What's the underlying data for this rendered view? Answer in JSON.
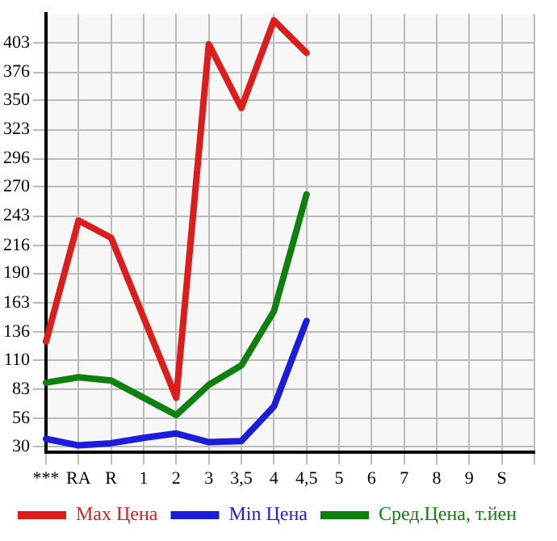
{
  "chart_data": {
    "type": "line",
    "categories": [
      "***",
      "RA",
      "R",
      "1",
      "2",
      "3",
      "3,5",
      "4",
      "4,5",
      "5",
      "6",
      "7",
      "8",
      "9",
      "S",
      null
    ],
    "series": [
      {
        "name": "Max Цена",
        "color": "#dd1c1c",
        "values": [
          127,
          239,
          223,
          149,
          75,
          402,
          343,
          424,
          394,
          null,
          null,
          null,
          null,
          null,
          null,
          null
        ]
      },
      {
        "name": "Min Цена",
        "color": "#1c1cdd",
        "values": [
          37,
          31,
          33,
          38,
          42,
          34,
          35,
          67,
          146,
          null,
          null,
          null,
          null,
          null,
          null,
          null
        ]
      },
      {
        "name": "Сред.Цена, т.йен",
        "color": "#0e800e",
        "values": [
          89,
          94,
          91,
          75,
          59,
          87,
          105,
          155,
          263,
          null,
          null,
          null,
          null,
          null,
          null,
          null
        ]
      }
    ],
    "ylim": [
      25,
      430
    ],
    "yticks": [
      30,
      56,
      83,
      110,
      136,
      163,
      190,
      216,
      243,
      270,
      296,
      323,
      350,
      376,
      403
    ],
    "grid": true,
    "legend": "bottom",
    "marker": "none",
    "line_style": "solid"
  }
}
